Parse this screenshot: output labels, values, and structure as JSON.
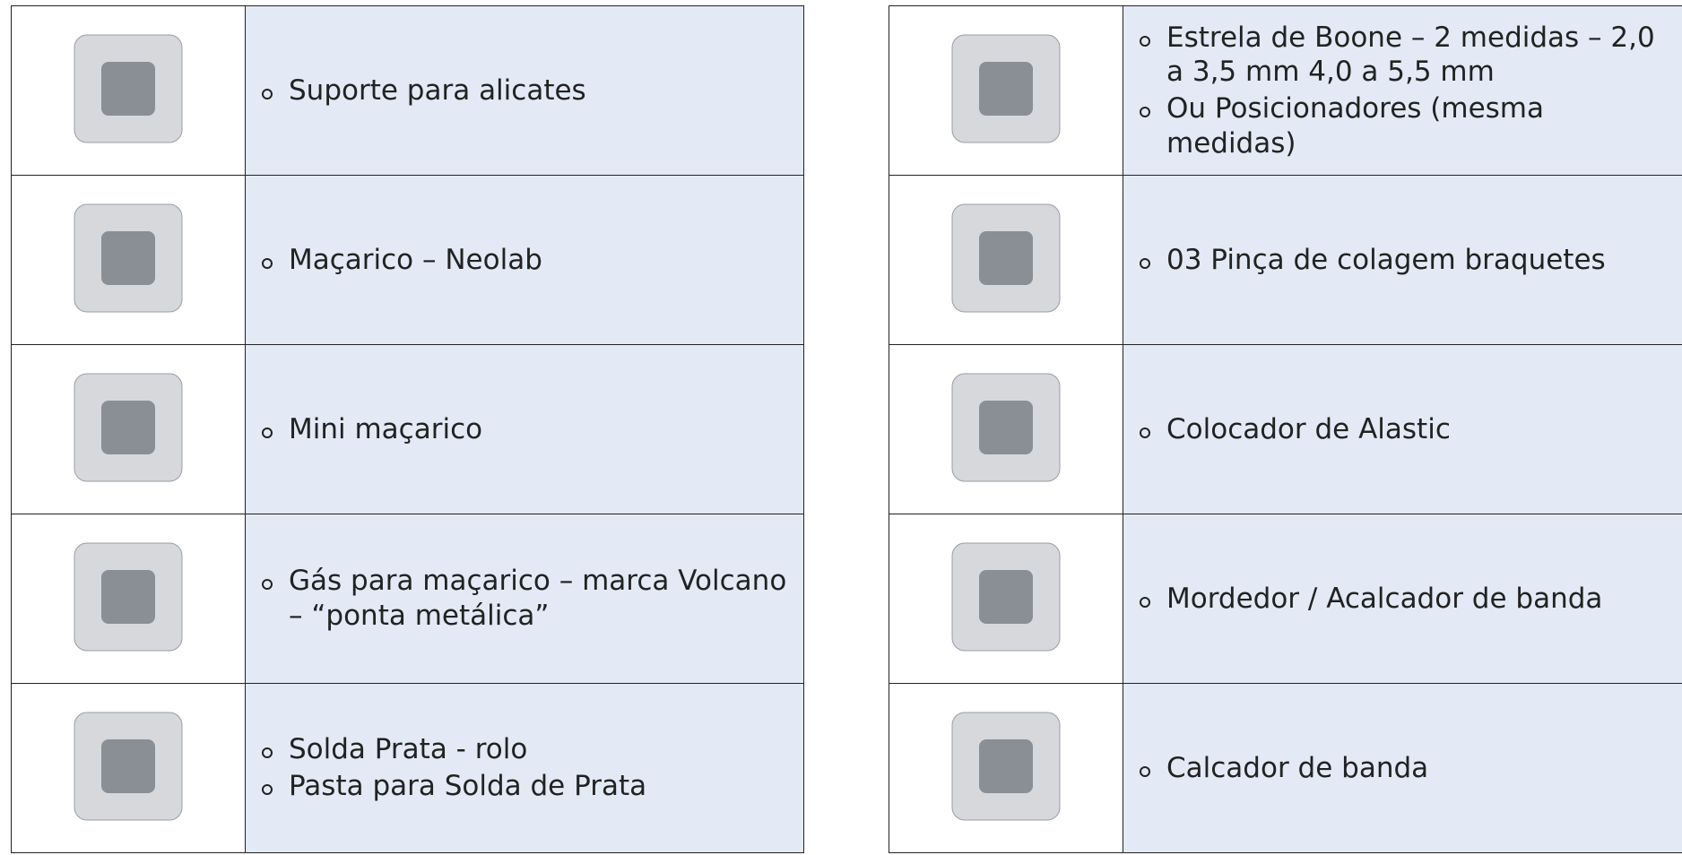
{
  "left_table": {
    "rows": [
      {
        "items": [
          "Suporte para alicates"
        ]
      },
      {
        "items": [
          "Maçarico – Neolab"
        ]
      },
      {
        "items": [
          "Mini maçarico"
        ]
      },
      {
        "items": [
          "Gás para maçarico – marca Volcano – “ponta metálica”"
        ]
      },
      {
        "items": [
          "Solda Prata - rolo",
          "Pasta para Solda de Prata"
        ]
      }
    ]
  },
  "right_table": {
    "rows": [
      {
        "items": [
          "Estrela de Boone – 2 medidas – 2,0 a 3,5 mm 4,0 a 5,5 mm",
          "Ou Posicionadores (mesma medidas)"
        ]
      },
      {
        "items": [
          "03 Pinça de colagem braquetes"
        ]
      },
      {
        "items": [
          "Colocador de Alastic"
        ]
      },
      {
        "items": [
          "Mordedor / Acalcador de banda"
        ]
      },
      {
        "items": [
          "Calcador de banda"
        ]
      }
    ]
  }
}
